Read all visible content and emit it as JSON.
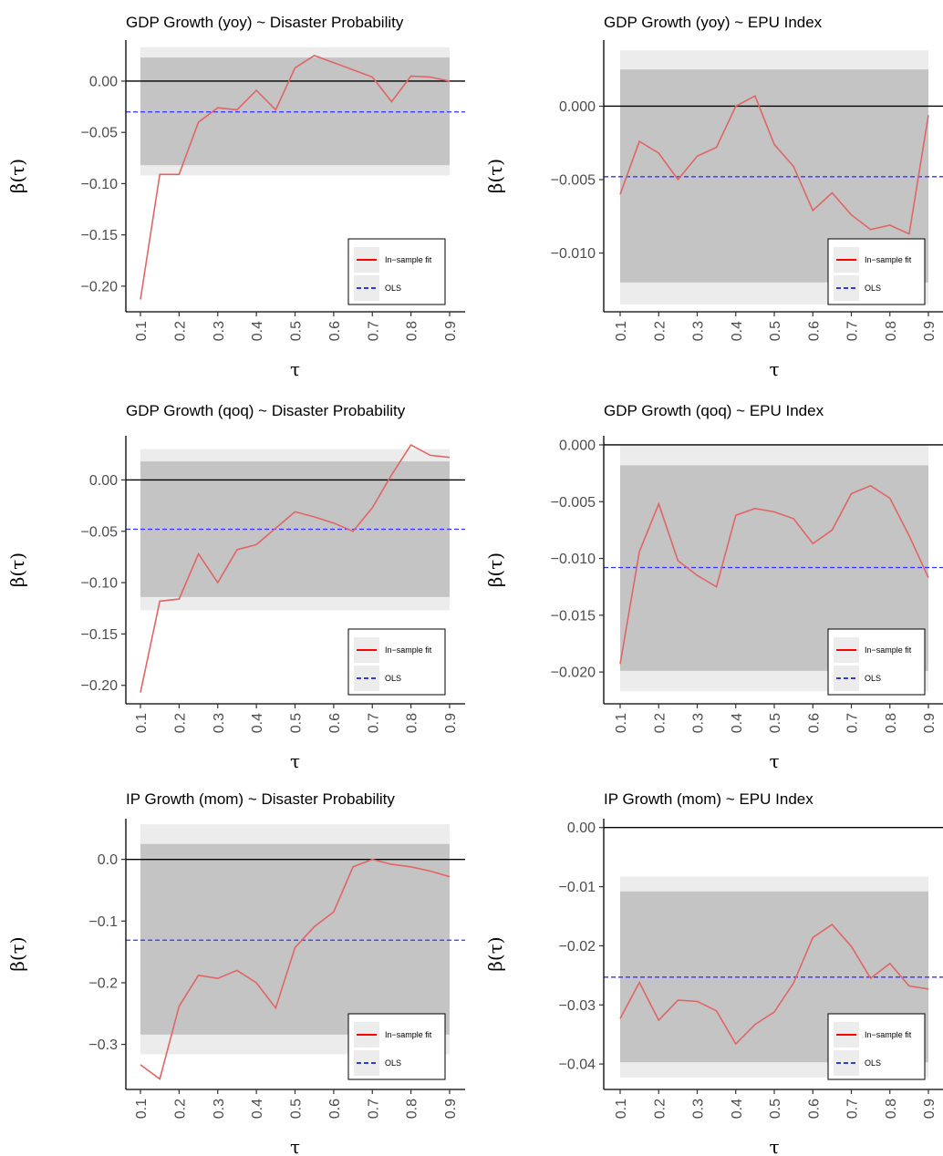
{
  "chart_data": [
    {
      "type": "line",
      "title": "GDP Growth (yoy) ~ Disaster Probability",
      "xlabel": "τ",
      "ylabel": "β(τ)",
      "x": [
        0.1,
        0.15,
        0.2,
        0.25,
        0.3,
        0.35,
        0.4,
        0.45,
        0.5,
        0.55,
        0.6,
        0.65,
        0.7,
        0.75,
        0.8,
        0.85,
        0.9
      ],
      "xticks": [
        "0.1",
        "0.2",
        "0.3",
        "0.4",
        "0.5",
        "0.6",
        "0.7",
        "0.8",
        "0.9"
      ],
      "yticks": [
        0.0,
        -0.05,
        -0.1,
        -0.15,
        -0.2
      ],
      "ytick_labels": [
        "0.00",
        "−0.05",
        "−0.10",
        "−0.15",
        "−0.20"
      ],
      "ylim": [
        -0.225,
        0.04
      ],
      "series": [
        {
          "name": "In−sample fit",
          "color": "#e06666",
          "values": [
            -0.213,
            -0.091,
            -0.091,
            -0.04,
            -0.026,
            -0.028,
            -0.009,
            -0.028,
            0.013,
            0.025,
            0.018,
            0.011,
            0.004,
            -0.02,
            0.005,
            0.004,
            0.0
          ]
        }
      ],
      "ols": -0.03,
      "band_outer": [
        -0.092,
        0.033
      ],
      "band_inner": [
        -0.082,
        0.023
      ],
      "zero_line": 0,
      "legend": {
        "fit_label": "In−sample fit",
        "ols_label": "OLS",
        "placement": "bottom-right"
      }
    },
    {
      "type": "line",
      "title": "GDP Growth (yoy) ~ EPU Index",
      "xlabel": "τ",
      "ylabel": "β(τ)",
      "x": [
        0.1,
        0.15,
        0.2,
        0.25,
        0.3,
        0.35,
        0.4,
        0.45,
        0.5,
        0.55,
        0.6,
        0.65,
        0.7,
        0.75,
        0.8,
        0.85,
        0.9
      ],
      "xticks": [
        "0.1",
        "0.2",
        "0.3",
        "0.4",
        "0.5",
        "0.6",
        "0.7",
        "0.8",
        "0.9"
      ],
      "yticks": [
        0.0,
        -0.005,
        -0.01
      ],
      "ytick_labels": [
        "0.000",
        "−0.005",
        "−0.010"
      ],
      "ylim": [
        -0.014,
        0.0045
      ],
      "series": [
        {
          "name": "In−sample fit",
          "color": "#e06666",
          "values": [
            -0.006,
            -0.0024,
            -0.0032,
            -0.005,
            -0.0034,
            -0.0028,
            0.0,
            0.0007,
            -0.0026,
            -0.0041,
            -0.0071,
            -0.0059,
            -0.0074,
            -0.0084,
            -0.0081,
            -0.0087,
            -0.0006
          ]
        }
      ],
      "ols": -0.0048,
      "band_outer": [
        -0.0135,
        0.0038
      ],
      "band_inner": [
        -0.012,
        0.0025
      ],
      "zero_line": 0,
      "legend": {
        "fit_label": "In−sample fit",
        "ols_label": "OLS",
        "placement": "bottom-right"
      }
    },
    {
      "type": "line",
      "title": "GDP Growth (qoq) ~ Disaster Probability",
      "xlabel": "τ",
      "ylabel": "β(τ)",
      "x": [
        0.1,
        0.15,
        0.2,
        0.25,
        0.3,
        0.35,
        0.4,
        0.45,
        0.5,
        0.55,
        0.6,
        0.65,
        0.7,
        0.75,
        0.8,
        0.85,
        0.9
      ],
      "xticks": [
        "0.1",
        "0.2",
        "0.3",
        "0.4",
        "0.5",
        "0.6",
        "0.7",
        "0.8",
        "0.9"
      ],
      "yticks": [
        0.0,
        -0.05,
        -0.1,
        -0.15,
        -0.2
      ],
      "ytick_labels": [
        "0.00",
        "−0.05",
        "−0.10",
        "−0.15",
        "−0.20"
      ],
      "ylim": [
        -0.218,
        0.043
      ],
      "series": [
        {
          "name": "In−sample fit",
          "color": "#e06666",
          "values": [
            -0.207,
            -0.118,
            -0.116,
            -0.072,
            -0.1,
            -0.068,
            -0.063,
            -0.047,
            -0.031,
            -0.036,
            -0.042,
            -0.05,
            -0.027,
            0.005,
            0.034,
            0.024,
            0.022
          ]
        }
      ],
      "ols": -0.048,
      "band_outer": [
        -0.127,
        0.03
      ],
      "band_inner": [
        -0.114,
        0.018
      ],
      "zero_line": 0,
      "legend": {
        "fit_label": "In−sample fit",
        "ols_label": "OLS",
        "placement": "bottom-right"
      }
    },
    {
      "type": "line",
      "title": "GDP Growth (qoq) ~ EPU Index",
      "xlabel": "τ",
      "ylabel": "β(τ)",
      "x": [
        0.1,
        0.15,
        0.2,
        0.25,
        0.3,
        0.35,
        0.4,
        0.45,
        0.5,
        0.55,
        0.6,
        0.65,
        0.7,
        0.75,
        0.8,
        0.85,
        0.9
      ],
      "xticks": [
        "0.1",
        "0.2",
        "0.3",
        "0.4",
        "0.5",
        "0.6",
        "0.7",
        "0.8",
        "0.9"
      ],
      "yticks": [
        0.0,
        -0.005,
        -0.01,
        -0.015,
        -0.02
      ],
      "ytick_labels": [
        "0.000",
        "−0.005",
        "−0.010",
        "−0.015",
        "−0.020"
      ],
      "ylim": [
        -0.0228,
        0.0008
      ],
      "series": [
        {
          "name": "In−sample fit",
          "color": "#e06666",
          "values": [
            -0.0193,
            -0.0094,
            -0.0052,
            -0.0102,
            -0.0115,
            -0.0125,
            -0.0062,
            -0.0056,
            -0.0059,
            -0.0065,
            -0.0087,
            -0.0075,
            -0.0043,
            -0.0036,
            -0.0047,
            -0.008,
            -0.0117
          ]
        }
      ],
      "ols": -0.0108,
      "band_outer": [
        -0.0217,
        0.0
      ],
      "band_inner": [
        -0.0199,
        -0.0018
      ],
      "zero_line": 0,
      "legend": {
        "fit_label": "In−sample fit",
        "ols_label": "OLS",
        "placement": "bottom-right"
      }
    },
    {
      "type": "line",
      "title": "IP Growth (mom) ~ Disaster Probability",
      "xlabel": "τ",
      "ylabel": "β(τ)",
      "x": [
        0.1,
        0.15,
        0.2,
        0.25,
        0.3,
        0.35,
        0.4,
        0.45,
        0.5,
        0.55,
        0.6,
        0.65,
        0.7,
        0.75,
        0.8,
        0.85,
        0.9
      ],
      "xticks": [
        "0.1",
        "0.2",
        "0.3",
        "0.4",
        "0.5",
        "0.6",
        "0.7",
        "0.8",
        "0.9"
      ],
      "yticks": [
        0.0,
        -0.1,
        -0.2,
        -0.3
      ],
      "ytick_labels": [
        "0.0",
        "−0.1",
        "−0.2",
        "−0.3"
      ],
      "ylim": [
        -0.373,
        0.066
      ],
      "series": [
        {
          "name": "In−sample fit",
          "color": "#e06666",
          "values": [
            -0.333,
            -0.356,
            -0.238,
            -0.188,
            -0.193,
            -0.18,
            -0.2,
            -0.241,
            -0.143,
            -0.109,
            -0.085,
            -0.012,
            0.0,
            -0.008,
            -0.012,
            -0.019,
            -0.028
          ]
        }
      ],
      "ols": -0.131,
      "band_outer": [
        -0.316,
        0.057
      ],
      "band_inner": [
        -0.284,
        0.025
      ],
      "zero_line": 0,
      "legend": {
        "fit_label": "In−sample fit",
        "ols_label": "OLS",
        "placement": "bottom-right"
      }
    },
    {
      "type": "line",
      "title": "IP Growth (mom) ~ EPU Index",
      "xlabel": "τ",
      "ylabel": "β(τ)",
      "x": [
        0.1,
        0.15,
        0.2,
        0.25,
        0.3,
        0.35,
        0.4,
        0.45,
        0.5,
        0.55,
        0.6,
        0.65,
        0.7,
        0.75,
        0.8,
        0.85,
        0.9
      ],
      "xticks": [
        "0.1",
        "0.2",
        "0.3",
        "0.4",
        "0.5",
        "0.6",
        "0.7",
        "0.8",
        "0.9"
      ],
      "yticks": [
        0.0,
        -0.01,
        -0.02,
        -0.03,
        -0.04
      ],
      "ytick_labels": [
        "0.00",
        "−0.01",
        "−0.02",
        "−0.03",
        "−0.04"
      ],
      "ylim": [
        -0.0443,
        0.0015
      ],
      "series": [
        {
          "name": "In−sample fit",
          "color": "#e06666",
          "values": [
            -0.0323,
            -0.0262,
            -0.0326,
            -0.0292,
            -0.0294,
            -0.031,
            -0.0366,
            -0.0333,
            -0.0312,
            -0.0263,
            -0.0186,
            -0.0164,
            -0.0201,
            -0.0255,
            -0.023,
            -0.0268,
            -0.0273
          ]
        }
      ],
      "ols": -0.0253,
      "band_outer": [
        -0.0423,
        -0.0083
      ],
      "band_inner": [
        -0.0397,
        -0.0108
      ],
      "zero_line": 0,
      "legend": {
        "fit_label": "In−sample fit",
        "ols_label": "OLS",
        "placement": "bottom-right"
      }
    }
  ],
  "colors": {
    "band_outer": "#ececec",
    "band_inner": "#c4c4c4",
    "fit_line": "#e06666",
    "legend_fit_line": "#ff0000",
    "ols_line": "#3333ff",
    "zero_line": "#000000"
  }
}
